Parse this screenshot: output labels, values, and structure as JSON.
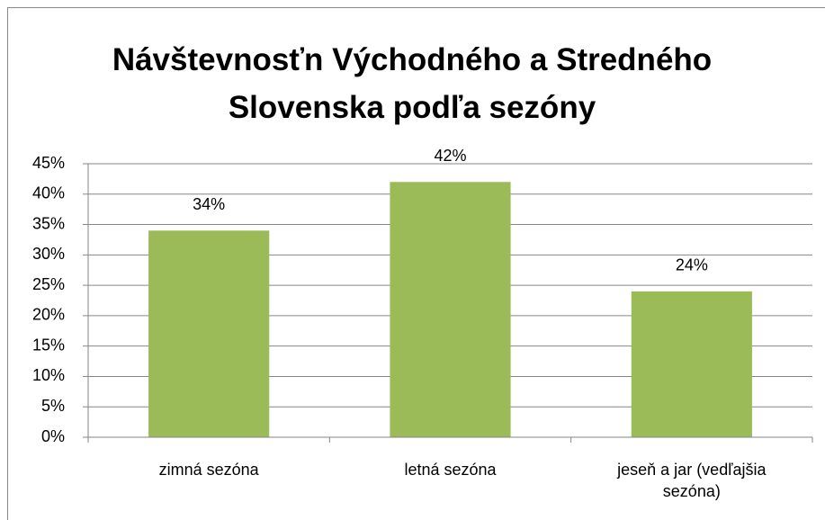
{
  "chart_data": {
    "type": "bar",
    "title": "Návštevnosťn Východného a Stredného Slovenska podľa sezóny",
    "categories": [
      "zimná sezóna",
      "letná sezóna",
      "jeseň a jar (vedľajšia sezóna)"
    ],
    "values": [
      34,
      42,
      24
    ],
    "value_labels": [
      "34%",
      "42%",
      "24%"
    ],
    "color": "#9bbb59",
    "ylim": [
      0,
      45
    ],
    "yticks": [
      {
        "value": 0,
        "label": "0%"
      },
      {
        "value": 5,
        "label": "5%"
      },
      {
        "value": 10,
        "label": "10%"
      },
      {
        "value": 15,
        "label": "15%"
      },
      {
        "value": 20,
        "label": "20%"
      },
      {
        "value": 25,
        "label": "25%"
      },
      {
        "value": 30,
        "label": "30%"
      },
      {
        "value": 35,
        "label": "35%"
      },
      {
        "value": 40,
        "label": "40%"
      },
      {
        "value": 45,
        "label": "45%"
      }
    ],
    "grid": true
  }
}
